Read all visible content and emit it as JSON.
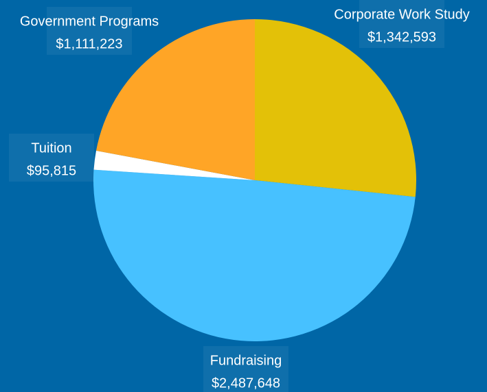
{
  "chart_data": {
    "type": "pie",
    "categories": [
      "Corporate Work Study",
      "Fundraising",
      "Tuition",
      "Government Programs"
    ],
    "values": [
      1342593,
      2487648,
      95815,
      1111223
    ],
    "value_labels": [
      "$1,342,593",
      "$2,487,648",
      "$95,815",
      "$1,111,223"
    ],
    "colors": [
      "#e3c108",
      "#47c1ff",
      "#ffffff",
      "#ffa526"
    ]
  }
}
